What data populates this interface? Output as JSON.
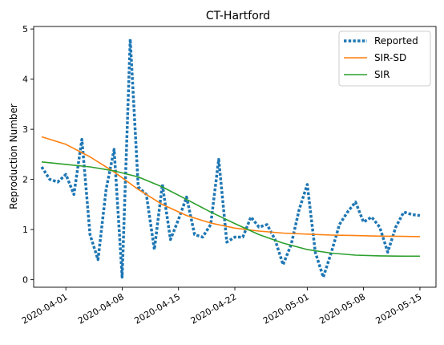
{
  "chart_data": {
    "type": "line",
    "title": "CT-Hartford",
    "xlabel": "",
    "ylabel": "Reproduction Number",
    "xlim": [
      "2020-03-28",
      "2020-05-17"
    ],
    "ylim": [
      -0.15,
      5.05
    ],
    "yticks": [
      0,
      1,
      2,
      3,
      4,
      5
    ],
    "xticks": [
      "2020-04-01",
      "2020-04-08",
      "2020-04-15",
      "2020-04-22",
      "2020-05-01",
      "2020-05-08",
      "2020-05-15"
    ],
    "legend_position": "top-right",
    "grid": false,
    "series": [
      {
        "name": "Reported",
        "style": "dotted",
        "color": "#1f77b4",
        "x": [
          "2020-03-29",
          "2020-03-30",
          "2020-03-31",
          "2020-04-01",
          "2020-04-02",
          "2020-04-03",
          "2020-04-04",
          "2020-04-05",
          "2020-04-06",
          "2020-04-07",
          "2020-04-08",
          "2020-04-09",
          "2020-04-10",
          "2020-04-11",
          "2020-04-12",
          "2020-04-13",
          "2020-04-14",
          "2020-04-15",
          "2020-04-16",
          "2020-04-17",
          "2020-04-18",
          "2020-04-19",
          "2020-04-20",
          "2020-04-21",
          "2020-04-22",
          "2020-04-23",
          "2020-04-24",
          "2020-04-25",
          "2020-04-26",
          "2020-04-27",
          "2020-04-28",
          "2020-04-29",
          "2020-04-30",
          "2020-05-01",
          "2020-05-02",
          "2020-05-03",
          "2020-05-04",
          "2020-05-05",
          "2020-05-06",
          "2020-05-07",
          "2020-05-08",
          "2020-05-09",
          "2020-05-10",
          "2020-05-11",
          "2020-05-12",
          "2020-05-13",
          "2020-05-14",
          "2020-05-15"
        ],
        "y": [
          2.25,
          2.0,
          1.95,
          2.1,
          1.7,
          2.8,
          0.9,
          0.4,
          1.8,
          2.6,
          0.05,
          4.8,
          1.85,
          1.7,
          0.6,
          1.9,
          0.8,
          1.2,
          1.65,
          0.9,
          0.85,
          1.1,
          2.4,
          0.75,
          0.85,
          0.85,
          1.25,
          1.05,
          1.1,
          0.8,
          0.3,
          0.7,
          1.4,
          1.9,
          0.55,
          0.05,
          0.55,
          1.1,
          1.35,
          1.55,
          1.15,
          1.25,
          1.05,
          0.55,
          1.05,
          1.35,
          1.3,
          1.28
        ]
      },
      {
        "name": "SIR-SD",
        "style": "solid",
        "color": "#ff7f0e",
        "x": [
          "2020-03-29",
          "2020-04-01",
          "2020-04-04",
          "2020-04-07",
          "2020-04-10",
          "2020-04-13",
          "2020-04-16",
          "2020-04-19",
          "2020-04-22",
          "2020-04-25",
          "2020-04-28",
          "2020-05-01",
          "2020-05-04",
          "2020-05-07",
          "2020-05-10",
          "2020-05-13",
          "2020-05-15"
        ],
        "y": [
          2.85,
          2.7,
          2.45,
          2.15,
          1.8,
          1.5,
          1.28,
          1.13,
          1.03,
          0.97,
          0.93,
          0.91,
          0.89,
          0.88,
          0.87,
          0.865,
          0.86
        ]
      },
      {
        "name": "SIR",
        "style": "solid",
        "color": "#2ca02c",
        "x": [
          "2020-03-29",
          "2020-04-01",
          "2020-04-04",
          "2020-04-07",
          "2020-04-10",
          "2020-04-13",
          "2020-04-16",
          "2020-04-19",
          "2020-04-22",
          "2020-04-25",
          "2020-04-28",
          "2020-05-01",
          "2020-05-04",
          "2020-05-07",
          "2020-05-10",
          "2020-05-13",
          "2020-05-15"
        ],
        "y": [
          2.35,
          2.3,
          2.25,
          2.17,
          2.05,
          1.85,
          1.6,
          1.35,
          1.12,
          0.9,
          0.73,
          0.6,
          0.53,
          0.49,
          0.475,
          0.47,
          0.47
        ]
      }
    ]
  }
}
